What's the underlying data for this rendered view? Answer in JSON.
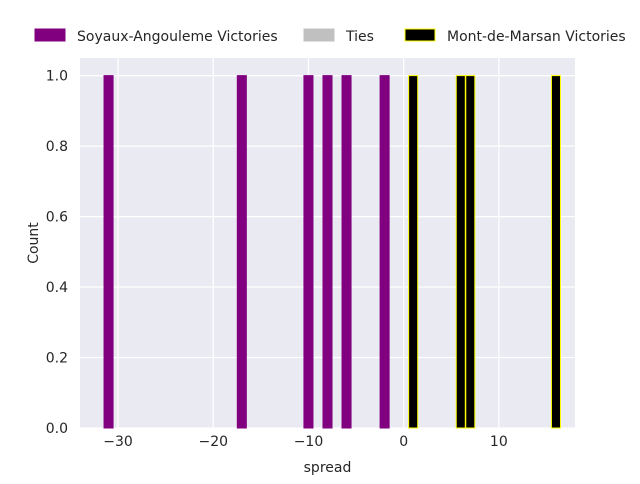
{
  "chart_data": {
    "type": "bar",
    "xlabel": "spread",
    "ylabel": "Count",
    "xlim": [
      -34,
      18
    ],
    "ylim": [
      0,
      1.05
    ],
    "x_ticks": [
      -30,
      -20,
      -10,
      0,
      10
    ],
    "x_tick_labels": [
      "−30",
      "−20",
      "−10",
      "0",
      "10"
    ],
    "y_ticks": [
      0.0,
      0.2,
      0.4,
      0.6,
      0.8,
      1.0
    ],
    "y_tick_labels": [
      "0.0",
      "0.2",
      "0.4",
      "0.6",
      "0.8",
      "1.0"
    ],
    "grid": true,
    "legend_position": "top",
    "bin_width": 1,
    "series": [
      {
        "name": "Soyaux-Angouleme Victories",
        "color": "#800080",
        "edge_color": "#800080",
        "x": [
          -31,
          -17,
          -10,
          -8,
          -6,
          -2
        ],
        "values": [
          1,
          1,
          1,
          1,
          1,
          1
        ]
      },
      {
        "name": "Ties",
        "color": "#c0c0c0",
        "edge_color": "#c0c0c0",
        "x": [],
        "values": []
      },
      {
        "name": "Mont-de-Marsan Victories",
        "color": "#000000",
        "edge_color": "#ffff00",
        "x": [
          1,
          6,
          7,
          16
        ],
        "values": [
          1,
          1,
          1,
          1
        ]
      }
    ]
  }
}
